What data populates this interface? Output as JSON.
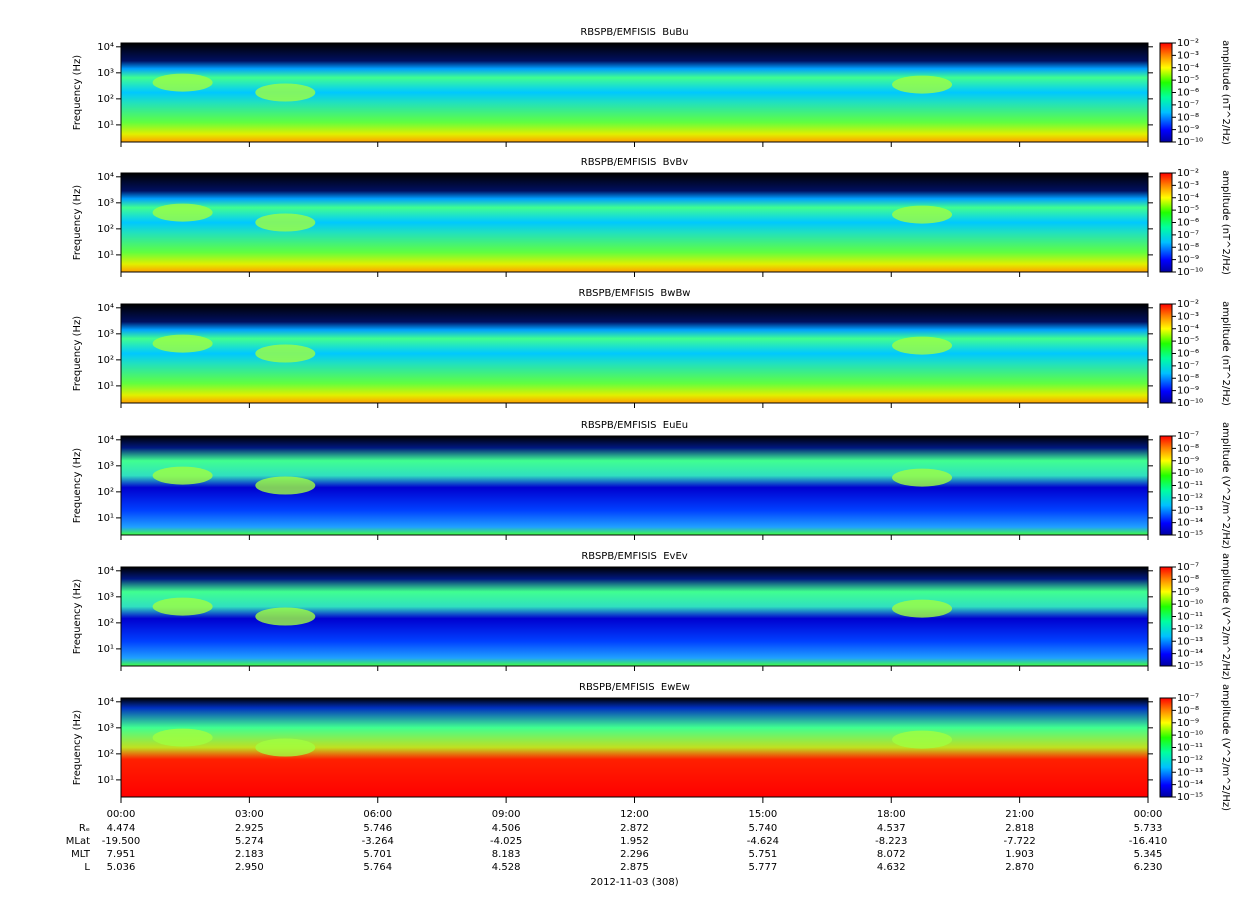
{
  "chart_data": [
    {
      "type": "spectrogram",
      "title": "RBSPB/EMFISIS  BuBu",
      "ylabel": "Frequency (Hz)",
      "yscale": "log",
      "ylim": [
        2.2,
        14000
      ],
      "yticks": [
        {
          "value": 10,
          "label": "10¹"
        },
        {
          "value": 100,
          "label": "10²"
        },
        {
          "value": 1000,
          "label": "10³"
        },
        {
          "value": 10000,
          "label": "10⁴"
        }
      ],
      "colorbar_label": "amplitude (nT^2/Hz)",
      "clim": [
        1e-10,
        0.01
      ],
      "cticks": [
        {
          "value": 1e-10,
          "label": "10⁻¹⁰"
        },
        {
          "value": 1e-09,
          "label": "10⁻⁹"
        },
        {
          "value": 1e-08,
          "label": "10⁻⁸"
        },
        {
          "value": 1e-07,
          "label": "10⁻⁷"
        },
        {
          "value": 1e-06,
          "label": "10⁻⁶"
        },
        {
          "value": 1e-05,
          "label": "10⁻⁵"
        },
        {
          "value": 0.0001,
          "label": "10⁻⁴"
        },
        {
          "value": 0.001,
          "label": "10⁻³"
        },
        {
          "value": 0.01,
          "label": "10⁻²"
        }
      ]
    },
    {
      "type": "spectrogram",
      "title": "RBSPB/EMFISIS  BvBv",
      "ylabel": "Frequency (Hz)",
      "yscale": "log",
      "ylim": [
        2.2,
        14000
      ],
      "yticks": [
        {
          "value": 10,
          "label": "10¹"
        },
        {
          "value": 100,
          "label": "10²"
        },
        {
          "value": 1000,
          "label": "10³"
        },
        {
          "value": 10000,
          "label": "10⁴"
        }
      ],
      "colorbar_label": "amplitude (nT^2/Hz)",
      "clim": [
        1e-10,
        0.01
      ],
      "cticks": [
        {
          "value": 1e-10,
          "label": "10⁻¹⁰"
        },
        {
          "value": 1e-09,
          "label": "10⁻⁹"
        },
        {
          "value": 1e-08,
          "label": "10⁻⁸"
        },
        {
          "value": 1e-07,
          "label": "10⁻⁷"
        },
        {
          "value": 1e-06,
          "label": "10⁻⁶"
        },
        {
          "value": 1e-05,
          "label": "10⁻⁵"
        },
        {
          "value": 0.0001,
          "label": "10⁻⁴"
        },
        {
          "value": 0.001,
          "label": "10⁻³"
        },
        {
          "value": 0.01,
          "label": "10⁻²"
        }
      ]
    },
    {
      "type": "spectrogram",
      "title": "RBSPB/EMFISIS  BwBw",
      "ylabel": "Frequency (Hz)",
      "yscale": "log",
      "ylim": [
        2.2,
        14000
      ],
      "yticks": [
        {
          "value": 10,
          "label": "10¹"
        },
        {
          "value": 100,
          "label": "10²"
        },
        {
          "value": 1000,
          "label": "10³"
        },
        {
          "value": 10000,
          "label": "10⁴"
        }
      ],
      "colorbar_label": "amplitude (nT^2/Hz)",
      "clim": [
        1e-10,
        0.01
      ],
      "cticks": [
        {
          "value": 1e-10,
          "label": "10⁻¹⁰"
        },
        {
          "value": 1e-09,
          "label": "10⁻⁹"
        },
        {
          "value": 1e-08,
          "label": "10⁻⁸"
        },
        {
          "value": 1e-07,
          "label": "10⁻⁷"
        },
        {
          "value": 1e-06,
          "label": "10⁻⁶"
        },
        {
          "value": 1e-05,
          "label": "10⁻⁵"
        },
        {
          "value": 0.0001,
          "label": "10⁻⁴"
        },
        {
          "value": 0.001,
          "label": "10⁻³"
        },
        {
          "value": 0.01,
          "label": "10⁻²"
        }
      ]
    },
    {
      "type": "spectrogram",
      "title": "RBSPB/EMFISIS  EuEu",
      "ylabel": "Frequency (Hz)",
      "yscale": "log",
      "ylim": [
        2.2,
        14000
      ],
      "yticks": [
        {
          "value": 10,
          "label": "10¹"
        },
        {
          "value": 100,
          "label": "10²"
        },
        {
          "value": 1000,
          "label": "10³"
        },
        {
          "value": 10000,
          "label": "10⁴"
        }
      ],
      "colorbar_label": "amplitude (V^2/m^2/Hz)",
      "clim": [
        1e-15,
        1e-07
      ],
      "cticks": [
        {
          "value": 1e-15,
          "label": "10⁻¹⁵"
        },
        {
          "value": 1e-14,
          "label": "10⁻¹⁴"
        },
        {
          "value": 1e-13,
          "label": "10⁻¹³"
        },
        {
          "value": 1e-12,
          "label": "10⁻¹²"
        },
        {
          "value": 1e-11,
          "label": "10⁻¹¹"
        },
        {
          "value": 1e-10,
          "label": "10⁻¹⁰"
        },
        {
          "value": 1e-09,
          "label": "10⁻⁹"
        },
        {
          "value": 1e-08,
          "label": "10⁻⁸"
        },
        {
          "value": 1e-07,
          "label": "10⁻⁷"
        }
      ]
    },
    {
      "type": "spectrogram",
      "title": "RBSPB/EMFISIS  EvEv",
      "ylabel": "Frequency (Hz)",
      "yscale": "log",
      "ylim": [
        2.2,
        14000
      ],
      "yticks": [
        {
          "value": 10,
          "label": "10¹"
        },
        {
          "value": 100,
          "label": "10²"
        },
        {
          "value": 1000,
          "label": "10³"
        },
        {
          "value": 10000,
          "label": "10⁴"
        }
      ],
      "colorbar_label": "amplitude (V^2/m^2/Hz)",
      "clim": [
        1e-15,
        1e-07
      ],
      "cticks": [
        {
          "value": 1e-15,
          "label": "10⁻¹⁵"
        },
        {
          "value": 1e-14,
          "label": "10⁻¹⁴"
        },
        {
          "value": 1e-13,
          "label": "10⁻¹³"
        },
        {
          "value": 1e-12,
          "label": "10⁻¹²"
        },
        {
          "value": 1e-11,
          "label": "10⁻¹¹"
        },
        {
          "value": 1e-10,
          "label": "10⁻¹⁰"
        },
        {
          "value": 1e-09,
          "label": "10⁻⁹"
        },
        {
          "value": 1e-08,
          "label": "10⁻⁸"
        },
        {
          "value": 1e-07,
          "label": "10⁻⁷"
        }
      ]
    },
    {
      "type": "spectrogram",
      "title": "RBSPB/EMFISIS  EwEw",
      "ylabel": "Frequency (Hz)",
      "yscale": "log",
      "ylim": [
        2.2,
        14000
      ],
      "yticks": [
        {
          "value": 10,
          "label": "10¹"
        },
        {
          "value": 100,
          "label": "10²"
        },
        {
          "value": 1000,
          "label": "10³"
        },
        {
          "value": 10000,
          "label": "10⁴"
        }
      ],
      "colorbar_label": "amplitude (V^2/m^2/Hz)",
      "clim": [
        1e-15,
        1e-07
      ],
      "cticks": [
        {
          "value": 1e-15,
          "label": "10⁻¹⁵"
        },
        {
          "value": 1e-14,
          "label": "10⁻¹⁴"
        },
        {
          "value": 1e-13,
          "label": "10⁻¹³"
        },
        {
          "value": 1e-12,
          "label": "10⁻¹²"
        },
        {
          "value": 1e-11,
          "label": "10⁻¹¹"
        },
        {
          "value": 1e-10,
          "label": "10⁻¹⁰"
        },
        {
          "value": 1e-09,
          "label": "10⁻⁹"
        },
        {
          "value": 1e-08,
          "label": "10⁻⁸"
        },
        {
          "value": 1e-07,
          "label": "10⁻⁷"
        }
      ],
      "xlim": [
        0,
        24
      ],
      "xticks": [
        {
          "value": 0,
          "label": "00:00"
        },
        {
          "value": 3,
          "label": "03:00"
        },
        {
          "value": 6,
          "label": "06:00"
        },
        {
          "value": 9,
          "label": "09:00"
        },
        {
          "value": 12,
          "label": "12:00"
        },
        {
          "value": 15,
          "label": "15:00"
        },
        {
          "value": 18,
          "label": "18:00"
        },
        {
          "value": 21,
          "label": "21:00"
        },
        {
          "value": 24,
          "label": "00:00"
        }
      ],
      "xlabel": "2012-11-03 (308)",
      "ephemeris": [
        {
          "name": "Rₑ",
          "values": [
            "4.474",
            "2.925",
            "5.746",
            "4.506",
            "2.872",
            "5.740",
            "4.537",
            "2.818",
            "5.733"
          ]
        },
        {
          "name": "MLat",
          "values": [
            "-19.500",
            "5.274",
            "-3.264",
            "-4.025",
            "1.952",
            "-4.624",
            "-8.223",
            "-7.722",
            "-16.410"
          ]
        },
        {
          "name": "MLT",
          "values": [
            "7.951",
            "2.183",
            "5.701",
            "8.183",
            "2.296",
            "5.751",
            "8.072",
            "1.903",
            "5.345"
          ]
        },
        {
          "name": "L",
          "values": [
            "5.036",
            "2.950",
            "5.764",
            "4.528",
            "2.875",
            "5.777",
            "4.632",
            "2.870",
            "6.230"
          ]
        }
      ]
    }
  ]
}
